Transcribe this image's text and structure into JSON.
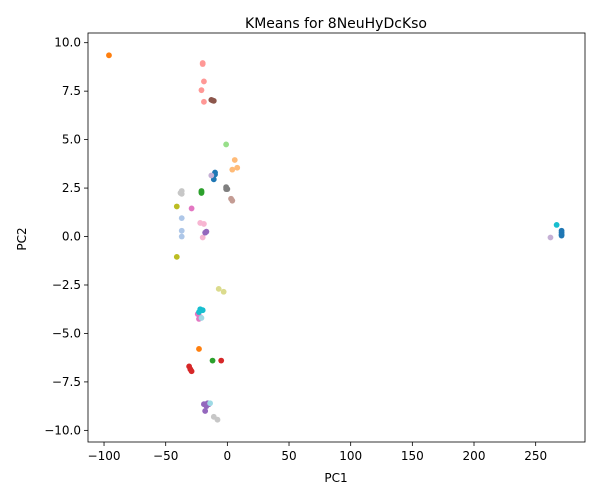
{
  "chart_data": {
    "type": "scatter",
    "title": "KMeans for 8NeuHyDcKso",
    "xlabel": "PC1",
    "ylabel": "PC2",
    "xlim": [
      -113,
      290
    ],
    "ylim": [
      -10.6,
      10.5
    ],
    "xticks": [
      -100,
      -50,
      0,
      50,
      100,
      150,
      200,
      250
    ],
    "yticks": [
      -10.0,
      -7.5,
      -5.0,
      -2.5,
      0.0,
      2.5,
      5.0,
      7.5,
      10.0
    ],
    "xtick_labels": [
      "−100",
      "−50",
      "0",
      "50",
      "100",
      "150",
      "200",
      "250"
    ],
    "ytick_labels": [
      "−10.0",
      "−7.5",
      "−5.0",
      "−2.5",
      "0.0",
      "2.5",
      "5.0",
      "7.5",
      "10.0"
    ],
    "grid": false,
    "legend": false,
    "series": [
      {
        "color": "#ff7f0e",
        "points": [
          [
            -96,
            9.35
          ],
          [
            -23,
            -5.8
          ]
        ]
      },
      {
        "color": "#ff9896",
        "points": [
          [
            -20,
            8.95
          ],
          [
            -19,
            8.0
          ],
          [
            -21,
            7.55
          ],
          [
            -19,
            6.95
          ],
          [
            -20,
            8.9
          ]
        ]
      },
      {
        "color": "#8c564b",
        "points": [
          [
            -13,
            7.05
          ],
          [
            -11,
            7.0
          ],
          [
            -12,
            7.02
          ]
        ]
      },
      {
        "color": "#98df8a",
        "points": [
          [
            -1,
            4.75
          ]
        ]
      },
      {
        "color": "#ffbb78",
        "points": [
          [
            6,
            3.95
          ],
          [
            8,
            3.55
          ],
          [
            4,
            3.45
          ]
        ]
      },
      {
        "color": "#1f77b4",
        "points": [
          [
            -10,
            3.3
          ],
          [
            -10,
            3.2
          ],
          [
            -11,
            2.95
          ],
          [
            271,
            0.3
          ],
          [
            271,
            0.1
          ],
          [
            271,
            0.2
          ],
          [
            271,
            0.05
          ]
        ]
      },
      {
        "color": "#c5b0d5",
        "points": [
          [
            -13,
            3.15
          ],
          [
            262,
            -0.05
          ]
        ]
      },
      {
        "color": "#7f7f7f",
        "points": [
          [
            -1,
            2.55
          ],
          [
            0,
            2.45
          ],
          [
            -1,
            2.45
          ]
        ]
      },
      {
        "color": "#c49c94",
        "points": [
          [
            3,
            1.95
          ],
          [
            4,
            1.85
          ]
        ]
      },
      {
        "color": "#c7c7c7",
        "points": [
          [
            -37,
            2.35
          ],
          [
            -38,
            2.25
          ],
          [
            -37,
            2.2
          ],
          [
            -11,
            -9.3
          ],
          [
            -8,
            -9.45
          ]
        ]
      },
      {
        "color": "#2ca02c",
        "points": [
          [
            -21,
            2.35
          ],
          [
            -21,
            2.3
          ],
          [
            -21,
            2.25
          ],
          [
            -12,
            -6.4
          ]
        ]
      },
      {
        "color": "#bcbd22",
        "points": [
          [
            -41,
            1.55
          ],
          [
            -41,
            -1.05
          ]
        ]
      },
      {
        "color": "#aec7e8",
        "points": [
          [
            -37,
            0.95
          ],
          [
            -37,
            0.3
          ],
          [
            -37,
            0.0
          ]
        ]
      },
      {
        "color": "#e377c2",
        "points": [
          [
            -29,
            1.45
          ],
          [
            -24,
            -4.0
          ],
          [
            -22,
            -4.15
          ],
          [
            -23,
            -4.25
          ]
        ]
      },
      {
        "color": "#f7b6d2",
        "points": [
          [
            -22,
            0.7
          ],
          [
            -19,
            0.65
          ],
          [
            -20,
            -0.05
          ]
        ]
      },
      {
        "color": "#9467bd",
        "points": [
          [
            -18,
            0.2
          ],
          [
            -17,
            0.25
          ],
          [
            -19,
            -8.65
          ],
          [
            -17,
            -8.75
          ],
          [
            -16,
            -8.6
          ],
          [
            -18,
            -9.0
          ],
          [
            -15,
            -8.65
          ]
        ]
      },
      {
        "color": "#17becf",
        "points": [
          [
            -22,
            -3.75
          ],
          [
            -20,
            -3.8
          ],
          [
            -23,
            -3.9
          ],
          [
            267,
            0.6
          ]
        ]
      },
      {
        "color": "#dbdb8d",
        "points": [
          [
            -7,
            -2.7
          ],
          [
            -3,
            -2.85
          ]
        ]
      },
      {
        "color": "#9edae5",
        "points": [
          [
            -21,
            -4.2
          ],
          [
            -14,
            -8.6
          ]
        ]
      },
      {
        "color": "#d62728",
        "points": [
          [
            -31,
            -6.7
          ],
          [
            -30,
            -6.85
          ],
          [
            -29,
            -6.95
          ],
          [
            -5,
            -6.4
          ]
        ]
      }
    ]
  }
}
